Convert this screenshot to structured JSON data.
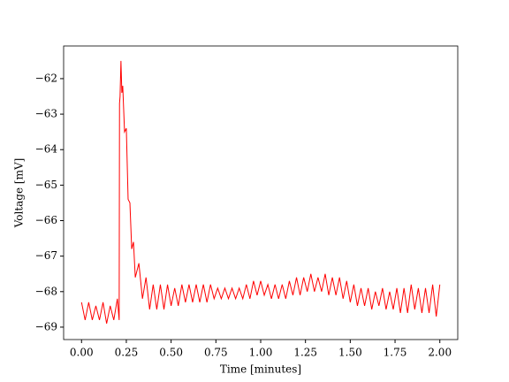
{
  "chart_data": {
    "type": "line",
    "xlabel": "Time [minutes]",
    "ylabel": "Voltage [mV]",
    "x": [
      0,
      0.02,
      0.04,
      0.06,
      0.08,
      0.1,
      0.12,
      0.14,
      0.16,
      0.18,
      0.2,
      0.21,
      0.212,
      0.215,
      0.22,
      0.225,
      0.23,
      0.24,
      0.25,
      0.26,
      0.27,
      0.28,
      0.29,
      0.3,
      0.32,
      0.34,
      0.36,
      0.38,
      0.4,
      0.42,
      0.44,
      0.46,
      0.48,
      0.5,
      0.52,
      0.54,
      0.56,
      0.58,
      0.6,
      0.62,
      0.64,
      0.66,
      0.68,
      0.7,
      0.72,
      0.74,
      0.76,
      0.78,
      0.8,
      0.82,
      0.84,
      0.86,
      0.88,
      0.9,
      0.92,
      0.94,
      0.96,
      0.98,
      1.0,
      1.02,
      1.04,
      1.06,
      1.08,
      1.1,
      1.12,
      1.14,
      1.16,
      1.18,
      1.2,
      1.22,
      1.24,
      1.26,
      1.28,
      1.3,
      1.32,
      1.34,
      1.36,
      1.38,
      1.4,
      1.42,
      1.44,
      1.46,
      1.48,
      1.5,
      1.52,
      1.54,
      1.56,
      1.58,
      1.6,
      1.62,
      1.64,
      1.66,
      1.68,
      1.7,
      1.72,
      1.74,
      1.76,
      1.78,
      1.8,
      1.82,
      1.84,
      1.86,
      1.88,
      1.9,
      1.92,
      1.94,
      1.96,
      1.98,
      2.0
    ],
    "series": [
      {
        "color": "#ff0000",
        "values": [
          -68.3,
          -68.8,
          -68.3,
          -68.8,
          -68.4,
          -68.8,
          -68.3,
          -68.9,
          -68.4,
          -68.8,
          -68.2,
          -68.8,
          -62.7,
          -62.5,
          -61.5,
          -62.4,
          -62.2,
          -63.5,
          -63.4,
          -65.4,
          -65.5,
          -66.8,
          -66.6,
          -67.6,
          -67.2,
          -68.2,
          -67.6,
          -68.5,
          -67.8,
          -68.5,
          -67.8,
          -68.5,
          -67.8,
          -68.4,
          -67.9,
          -68.4,
          -67.8,
          -68.3,
          -67.8,
          -68.3,
          -67.8,
          -68.3,
          -67.8,
          -68.3,
          -67.8,
          -68.2,
          -67.9,
          -68.2,
          -67.9,
          -68.2,
          -67.9,
          -68.2,
          -67.9,
          -68.2,
          -67.8,
          -68.2,
          -67.7,
          -68.1,
          -67.7,
          -68.1,
          -67.8,
          -68.2,
          -67.8,
          -68.2,
          -67.8,
          -68.2,
          -67.7,
          -68.1,
          -67.6,
          -68.1,
          -67.6,
          -68.0,
          -67.5,
          -68.0,
          -67.6,
          -68.0,
          -67.5,
          -68.1,
          -67.6,
          -68.1,
          -67.6,
          -68.2,
          -67.7,
          -68.3,
          -67.8,
          -68.4,
          -67.9,
          -68.4,
          -67.9,
          -68.5,
          -68.0,
          -68.4,
          -67.9,
          -68.5,
          -68.0,
          -68.5,
          -67.9,
          -68.6,
          -67.9,
          -68.6,
          -67.8,
          -68.5,
          -67.9,
          -68.6,
          -67.9,
          -68.6,
          -67.8,
          -68.7,
          -67.8
        ]
      }
    ],
    "xlim": [
      -0.1,
      2.1
    ],
    "xticks": [
      {
        "value": 0,
        "label": "0.00"
      },
      {
        "value": 0.25,
        "label": "0.25"
      },
      {
        "value": 0.5,
        "label": "0.50"
      },
      {
        "value": 0.75,
        "label": "0.75"
      },
      {
        "value": 1,
        "label": "1.00"
      },
      {
        "value": 1.25,
        "label": "1.25"
      },
      {
        "value": 1.5,
        "label": "1.50"
      },
      {
        "value": 1.75,
        "label": "1.75"
      },
      {
        "value": 2,
        "label": "2.00"
      }
    ],
    "ylim": [
      -69.35,
      -61.08
    ],
    "yticks": [
      {
        "value": -69,
        "label": "−69"
      },
      {
        "value": -68,
        "label": "−68"
      },
      {
        "value": -67,
        "label": "−67"
      },
      {
        "value": -66,
        "label": "−66"
      },
      {
        "value": -65,
        "label": "−65"
      },
      {
        "value": -64,
        "label": "−64"
      },
      {
        "value": -63,
        "label": "−63"
      },
      {
        "value": -62,
        "label": "−62"
      }
    ],
    "grid": false
  }
}
